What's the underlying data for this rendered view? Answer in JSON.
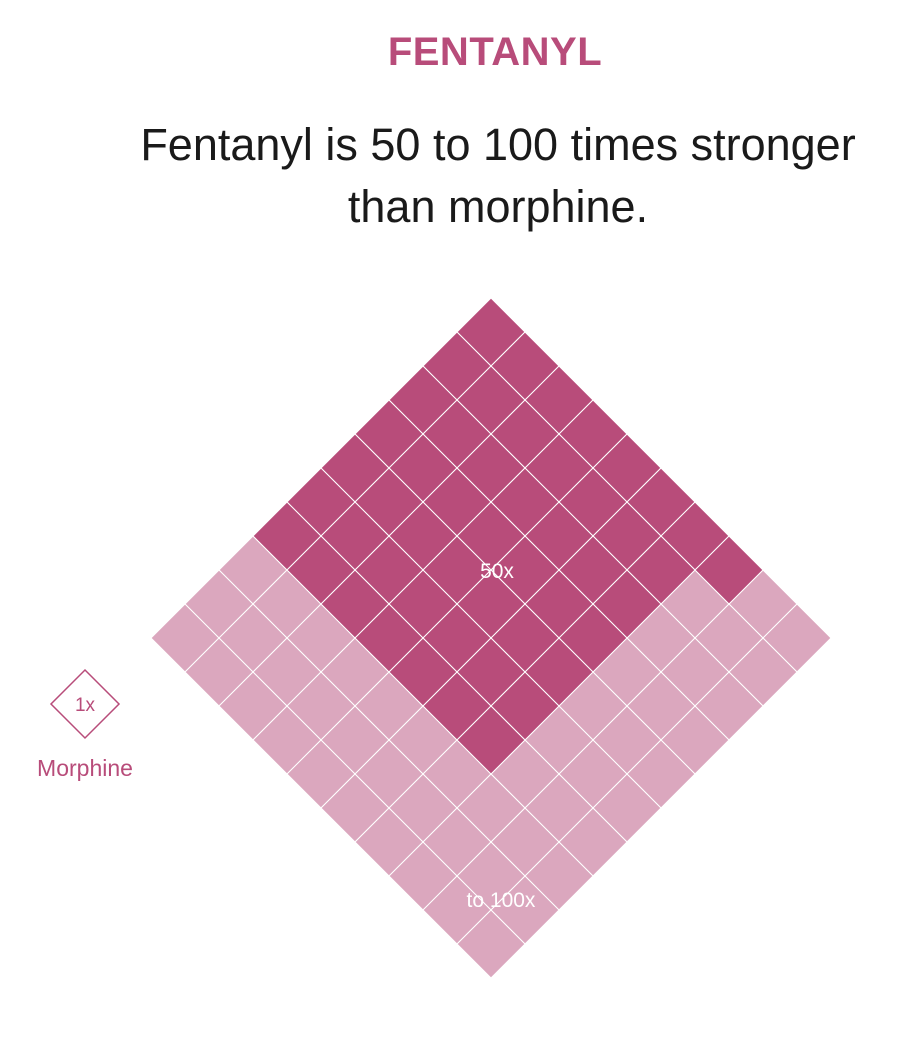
{
  "header": {
    "kicker": "FENTANYL",
    "headline": "Fentanyl is 50 to 100 times stronger than morphine."
  },
  "diagram": {
    "unit": {
      "label": "1x",
      "caption": "Morphine",
      "count": 1
    },
    "block_50x": {
      "label": "50x",
      "count": 50
    },
    "block_100x": {
      "label": "to 100x",
      "count": 100
    }
  },
  "colors": {
    "accent": "#b84c7a",
    "dark_tile": "#b84c7a",
    "light_tile": "#dba7be",
    "tile_stroke": "#ffffff",
    "text": "#1a1a1a"
  }
}
